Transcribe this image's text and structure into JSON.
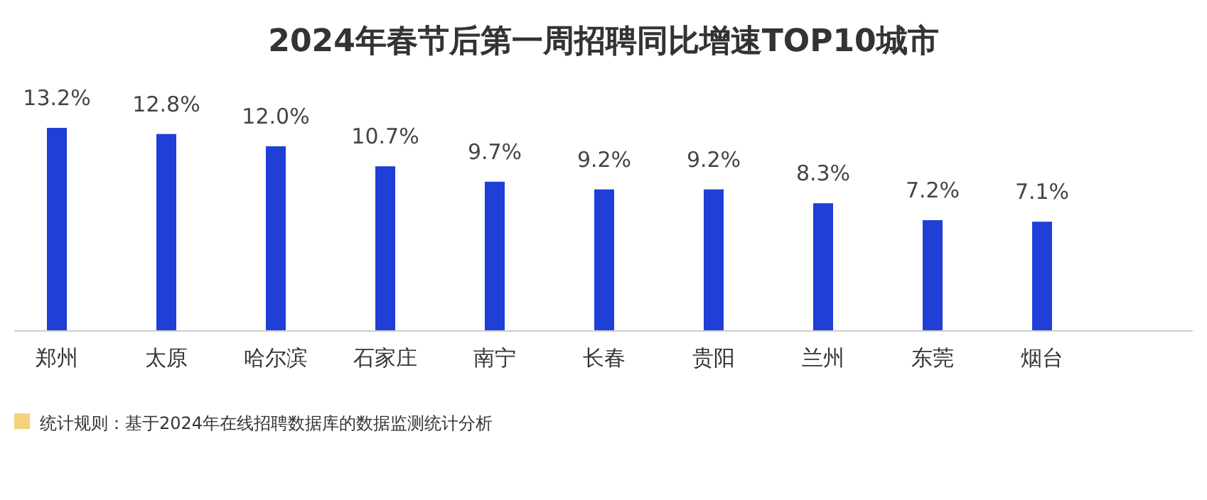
{
  "chart_data": {
    "type": "bar",
    "title": "2024年春节后第一周招聘同比增速TOP10城市",
    "categories": [
      "郑州",
      "太原",
      "哈尔滨",
      "石家庄",
      "南宁",
      "长春",
      "贵阳",
      "兰州",
      "东莞",
      "烟台"
    ],
    "values": [
      13.2,
      12.8,
      12.0,
      10.7,
      9.7,
      9.2,
      9.2,
      8.3,
      7.2,
      7.1
    ],
    "value_labels": [
      "13.2%",
      "12.8%",
      "12.0%",
      "10.7%",
      "9.7%",
      "9.2%",
      "9.2%",
      "8.3%",
      "7.2%",
      "7.1%"
    ],
    "color": "#1f3fd6",
    "annotations": [
      "统计规则：基于2024年在线招聘数据库的数据监测统计分析"
    ]
  }
}
